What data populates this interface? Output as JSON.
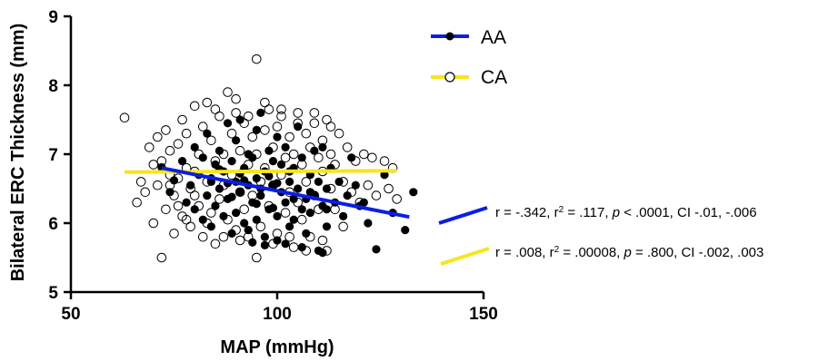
{
  "chart_data": {
    "type": "scatter",
    "xlabel": "MAP (mmHg)",
    "ylabel": "Bilateral ERC Thickness (mm)",
    "xlim": [
      50,
      150
    ],
    "ylim": [
      5,
      9
    ],
    "x_ticks": [
      "50",
      "100",
      "150"
    ],
    "y_ticks": [
      "5",
      "6",
      "7",
      "8",
      "9"
    ],
    "grid": false,
    "legend": "top-right",
    "series": [
      {
        "name": "AA",
        "marker": "filled-circle",
        "line_color": "#0a1ee6",
        "regression": {
          "x": [
            72,
            132
          ],
          "y": [
            6.8,
            6.09
          ]
        },
        "stats_text": "r = -.342, r2 = .117, p < .0001, CI -.01, -.006",
        "stats_text_parts": [
          "r = -.342, r",
          "2",
          " = .117, ",
          "p",
          " < .0001, CI -.01, -.006"
        ],
        "points": [
          [
            72,
            6.81
          ],
          [
            74,
            6.45
          ],
          [
            75,
            6.62
          ],
          [
            77,
            6.9
          ],
          [
            78,
            6.3
          ],
          [
            79,
            6.55
          ],
          [
            80,
            7.1
          ],
          [
            80,
            6.2
          ],
          [
            81,
            6.7
          ],
          [
            82,
            6.05
          ],
          [
            82,
            6.95
          ],
          [
            83,
            6.4
          ],
          [
            83,
            7.3
          ],
          [
            84,
            6.6
          ],
          [
            84,
            5.95
          ],
          [
            85,
            6.85
          ],
          [
            85,
            6.25
          ],
          [
            86,
            7.05
          ],
          [
            86,
            6.5
          ],
          [
            87,
            6.1
          ],
          [
            87,
            6.75
          ],
          [
            88,
            7.45
          ],
          [
            88,
            6.35
          ],
          [
            89,
            6.9
          ],
          [
            89,
            5.85
          ],
          [
            90,
            6.6
          ],
          [
            90,
            7.2
          ],
          [
            90,
            6.15
          ],
          [
            91,
            6.45
          ],
          [
            91,
            7.5
          ],
          [
            92,
            6.8
          ],
          [
            92,
            6.0
          ],
          [
            93,
            6.55
          ],
          [
            93,
            7.0
          ],
          [
            93,
            5.9
          ],
          [
            94,
            6.3
          ],
          [
            94,
            6.95
          ],
          [
            95,
            6.65
          ],
          [
            95,
            7.35
          ],
          [
            95,
            6.05
          ],
          [
            96,
            6.4
          ],
          [
            96,
            7.6
          ],
          [
            97,
            6.75
          ],
          [
            97,
            5.8
          ],
          [
            98,
            6.2
          ],
          [
            98,
            7.05
          ],
          [
            99,
            6.55
          ],
          [
            99,
            6.9
          ],
          [
            100,
            6.1
          ],
          [
            100,
            7.25
          ],
          [
            100,
            5.75
          ],
          [
            101,
            6.45
          ],
          [
            101,
            6.85
          ],
          [
            102,
            6.3
          ],
          [
            102,
            7.1
          ],
          [
            103,
            6.6
          ],
          [
            103,
            5.95
          ],
          [
            104,
            6.05
          ],
          [
            104,
            6.8
          ],
          [
            105,
            6.5
          ],
          [
            105,
            7.4
          ],
          [
            106,
            6.2
          ],
          [
            106,
            6.95
          ],
          [
            107,
            6.35
          ],
          [
            107,
            5.85
          ],
          [
            108,
            6.7
          ],
          [
            108,
            6.15
          ],
          [
            109,
            7.05
          ],
          [
            109,
            6.4
          ],
          [
            110,
            6.6
          ],
          [
            110,
            5.6
          ],
          [
            111,
            6.25
          ],
          [
            111,
            7.1
          ],
          [
            112,
            6.5
          ],
          [
            112,
            5.95
          ],
          [
            113,
            6.8
          ],
          [
            114,
            6.3
          ],
          [
            115,
            6.6
          ],
          [
            116,
            6.1
          ],
          [
            117,
            6.4
          ],
          [
            118,
            6.95
          ],
          [
            119,
            6.55
          ],
          [
            120,
            6.25
          ],
          [
            121,
            6.3
          ],
          [
            122,
            6.0
          ],
          [
            124,
            5.62
          ],
          [
            126,
            6.7
          ],
          [
            128,
            6.15
          ],
          [
            131,
            5.9
          ],
          [
            133,
            6.45
          ],
          [
            94,
            5.72
          ],
          [
            97,
            5.68
          ],
          [
            102,
            5.7
          ],
          [
            106,
            5.65
          ],
          [
            111,
            5.57
          ],
          [
            84,
            6.65
          ],
          [
            88,
            6.58
          ],
          [
            92,
            6.62
          ],
          [
            96,
            6.5
          ],
          [
            100,
            6.58
          ],
          [
            86,
            6.78
          ],
          [
            91,
            6.72
          ],
          [
            98,
            6.68
          ],
          [
            103,
            6.75
          ],
          [
            89,
            6.38
          ],
          [
            95,
            6.28
          ],
          [
            99,
            6.22
          ],
          [
            104,
            6.35
          ],
          [
            108,
            6.45
          ],
          [
            112,
            6.2
          ]
        ]
      },
      {
        "name": "CA",
        "marker": "open-circle",
        "line_color": "#f5e61e",
        "regression": {
          "x": [
            63,
            129
          ],
          "y": [
            6.74,
            6.76
          ]
        },
        "stats_text": "r = .008, r2 = .00008, p = .800, CI -.002, .003",
        "stats_text_parts": [
          "r = .008, r",
          "2",
          " = .00008, ",
          "p",
          " = .800, CI -.002, .003"
        ],
        "points": [
          [
            63,
            7.53
          ],
          [
            66,
            6.3
          ],
          [
            67,
            6.6
          ],
          [
            68,
            6.45
          ],
          [
            69,
            7.1
          ],
          [
            70,
            6.85
          ],
          [
            70,
            6.0
          ],
          [
            71,
            7.25
          ],
          [
            71,
            6.55
          ],
          [
            72,
            5.5
          ],
          [
            72,
            6.9
          ],
          [
            73,
            7.35
          ],
          [
            73,
            6.2
          ],
          [
            74,
            6.7
          ],
          [
            74,
            7.05
          ],
          [
            75,
            5.85
          ],
          [
            75,
            6.4
          ],
          [
            76,
            7.15
          ],
          [
            76,
            6.65
          ],
          [
            77,
            7.5
          ],
          [
            77,
            6.1
          ],
          [
            78,
            6.8
          ],
          [
            78,
            7.3
          ],
          [
            79,
            5.95
          ],
          [
            79,
            6.5
          ],
          [
            80,
            7.7
          ],
          [
            80,
            6.75
          ],
          [
            81,
            6.25
          ],
          [
            81,
            7.0
          ],
          [
            82,
            5.8
          ],
          [
            82,
            7.4
          ],
          [
            83,
            6.6
          ],
          [
            83,
            7.75
          ],
          [
            84,
            6.15
          ],
          [
            84,
            7.2
          ],
          [
            85,
            6.9
          ],
          [
            85,
            5.7
          ],
          [
            86,
            7.55
          ],
          [
            86,
            6.35
          ],
          [
            87,
            7.0
          ],
          [
            87,
            6.55
          ],
          [
            88,
            7.9
          ],
          [
            88,
            6.05
          ],
          [
            89,
            7.3
          ],
          [
            89,
            6.7
          ],
          [
            90,
            5.9
          ],
          [
            90,
            7.6
          ],
          [
            91,
            6.45
          ],
          [
            91,
            7.05
          ],
          [
            92,
            6.2
          ],
          [
            92,
            7.45
          ],
          [
            93,
            6.85
          ],
          [
            93,
            5.8
          ],
          [
            94,
            7.25
          ],
          [
            94,
            6.4
          ],
          [
            95,
            8.38
          ],
          [
            95,
            7.0
          ],
          [
            96,
            6.6
          ],
          [
            96,
            5.95
          ],
          [
            97,
            7.35
          ],
          [
            97,
            6.8
          ],
          [
            98,
            7.65
          ],
          [
            98,
            6.25
          ],
          [
            99,
            7.1
          ],
          [
            99,
            6.55
          ],
          [
            100,
            5.85
          ],
          [
            100,
            7.4
          ],
          [
            101,
            6.7
          ],
          [
            101,
            7.55
          ],
          [
            102,
            6.15
          ],
          [
            102,
            6.95
          ],
          [
            103,
            7.25
          ],
          [
            103,
            6.45
          ],
          [
            104,
            5.65
          ],
          [
            104,
            7.0
          ],
          [
            105,
            6.3
          ],
          [
            105,
            7.6
          ],
          [
            106,
            6.85
          ],
          [
            106,
            6.05
          ],
          [
            107,
            7.3
          ],
          [
            107,
            6.6
          ],
          [
            108,
            7.1
          ],
          [
            108,
            5.8
          ],
          [
            109,
            6.4
          ],
          [
            109,
            7.45
          ],
          [
            110,
            6.95
          ],
          [
            110,
            6.2
          ],
          [
            111,
            7.2
          ],
          [
            111,
            6.75
          ],
          [
            112,
            5.6
          ],
          [
            112,
            7.5
          ],
          [
            113,
            6.5
          ],
          [
            113,
            7.0
          ],
          [
            114,
            6.85
          ],
          [
            114,
            6.2
          ],
          [
            115,
            7.3
          ],
          [
            116,
            6.6
          ],
          [
            116,
            5.95
          ],
          [
            117,
            7.1
          ],
          [
            118,
            6.45
          ],
          [
            119,
            6.9
          ],
          [
            120,
            6.3
          ],
          [
            121,
            7.0
          ],
          [
            122,
            6.55
          ],
          [
            123,
            6.95
          ],
          [
            124,
            6.4
          ],
          [
            126,
            6.9
          ],
          [
            127,
            6.5
          ],
          [
            128,
            6.8
          ],
          [
            129,
            6.35
          ],
          [
            85,
            7.65
          ],
          [
            90,
            7.8
          ],
          [
            93,
            7.55
          ],
          [
            97,
            7.75
          ],
          [
            101,
            7.65
          ],
          [
            105,
            7.45
          ],
          [
            109,
            7.6
          ],
          [
            113,
            7.4
          ],
          [
            80,
            6.4
          ],
          [
            83,
            6.0
          ],
          [
            87,
            5.8
          ],
          [
            91,
            5.75
          ],
          [
            95,
            5.5
          ],
          [
            99,
            5.7
          ],
          [
            103,
            5.8
          ],
          [
            107,
            5.6
          ],
          [
            111,
            5.75
          ],
          [
            78,
            6.05
          ],
          [
            76,
            6.25
          ],
          [
            74,
            6.55
          ]
        ]
      }
    ]
  }
}
